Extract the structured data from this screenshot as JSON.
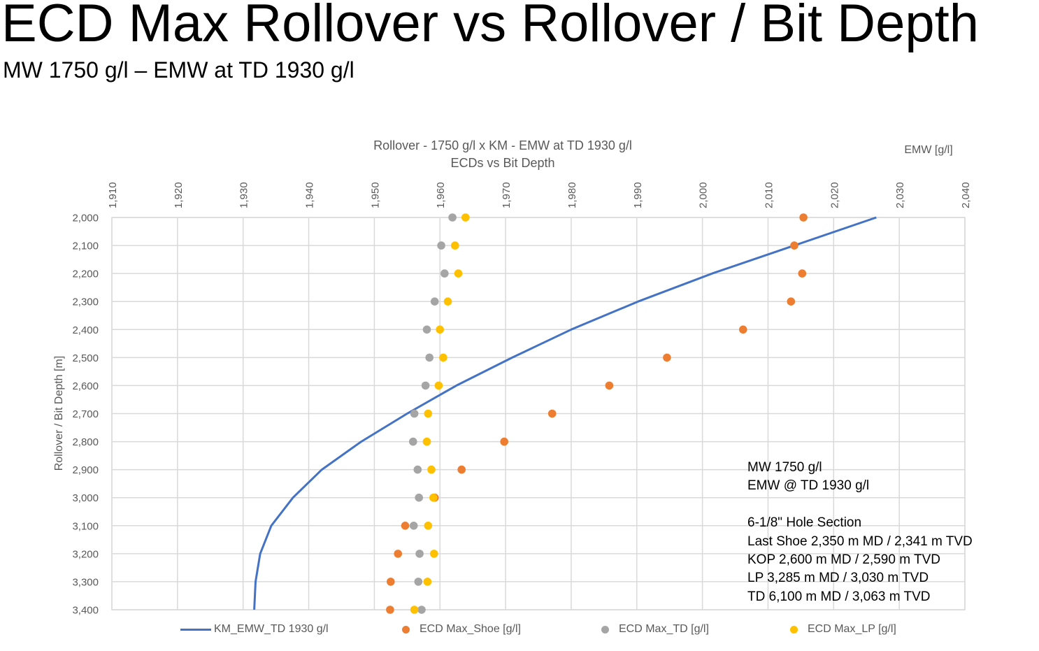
{
  "slide": {
    "title": "ECD Max Rollover vs Rollover / Bit Depth",
    "subtitle": "MW 1750 g/l – EMW at TD 1930 g/l"
  },
  "notes": {
    "line1": "MW 1750 g/l",
    "line2": "EMW @ TD 1930 g/l",
    "line3": "6-1/8\" Hole Section",
    "line4": "Last Shoe 2,350 m MD / 2,341 m TVD",
    "line5": "KOP 2,600 m MD / 2,590 m TVD",
    "line6": "LP 3,285 m MD / 3,030 m TVD",
    "line7": "TD 6,100 m MD / 3,063 m TVD"
  },
  "chart_data": {
    "type": "scatter",
    "title": "Rollover - 1750 g/l x KM - EMW at TD 1930 g/l",
    "subtitle": "ECDs vs Bit Depth",
    "xlabel": "EMW [g/l]",
    "ylabel": "Rollover / Bit Depth [m]",
    "xlim": [
      1910,
      2040
    ],
    "ylim": [
      3400,
      2000
    ],
    "x_axis_position": "top",
    "y_axis_inverted": true,
    "grid": true,
    "legend_position": "bottom",
    "x_ticks": [
      "1,910",
      "1,920",
      "1,930",
      "1,940",
      "1,950",
      "1,960",
      "1,970",
      "1,980",
      "1,990",
      "2,000",
      "2,010",
      "2,020",
      "2,030",
      "2,040"
    ],
    "y_ticks": [
      "2,000",
      "2,100",
      "2,200",
      "2,300",
      "2,400",
      "2,500",
      "2,600",
      "2,700",
      "2,800",
      "2,900",
      "3,000",
      "3,100",
      "3,200",
      "3,300",
      "3,400"
    ],
    "depths": [
      2000,
      2100,
      2200,
      2300,
      2400,
      2500,
      2600,
      2700,
      2800,
      2900,
      3000,
      3100,
      3200,
      3300,
      3400
    ],
    "series": [
      {
        "name": "KM_EMW_TD 1930 g/l",
        "kind": "line",
        "color": "#4472C4",
        "values": [
          2026.5,
          2014.0,
          2001.5,
          1990.2,
          1980.0,
          1971.0,
          1962.5,
          1955.0,
          1948.0,
          1942.0,
          1937.6,
          1934.3,
          1932.6,
          1931.9,
          1931.7
        ]
      },
      {
        "name": "ECD Max_Shoe [g/l]",
        "kind": "marker",
        "color": "#ED7D31",
        "values": [
          2015.4,
          2014.0,
          2015.2,
          2013.5,
          2006.2,
          1994.6,
          1985.8,
          1977.1,
          1969.8,
          1963.3,
          1959.2,
          1954.7,
          1953.6,
          1952.5,
          1952.4
        ]
      },
      {
        "name": "ECD Max_TD [g/l]",
        "kind": "marker",
        "color": "#A5A5A5",
        "values": [
          1961.9,
          1960.2,
          1960.7,
          1959.2,
          1958.0,
          1958.4,
          1957.8,
          1956.1,
          1955.9,
          1956.6,
          1956.8,
          1956.0,
          1956.9,
          1956.7,
          1957.2
        ]
      },
      {
        "name": "ECD Max_LP [g/l]",
        "kind": "marker",
        "color": "#FFC000",
        "values": [
          1963.9,
          1962.3,
          1962.8,
          1961.2,
          1960.0,
          1960.5,
          1959.8,
          1958.2,
          1958.0,
          1958.7,
          1959.0,
          1958.2,
          1959.1,
          1958.1,
          1956.1
        ]
      }
    ]
  }
}
